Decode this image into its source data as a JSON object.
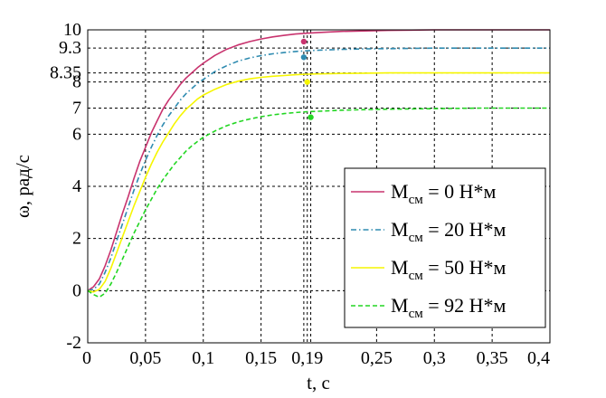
{
  "chart_data": {
    "type": "line",
    "title": "",
    "xlabel": "t, c",
    "ylabel": "ω, рад/с",
    "xlim": [
      0,
      0.4
    ],
    "ylim": [
      -2,
      10
    ],
    "grid": true,
    "grid_style": "dashed",
    "legend_position": "center-right",
    "x_ticks": [
      0,
      0.05,
      0.1,
      0.15,
      0.19,
      0.25,
      0.3,
      0.35,
      0.4
    ],
    "x_tick_labels": [
      "0",
      "0,05",
      "0,1",
      "0,15",
      "0,19",
      "0,25",
      "0,3",
      "0,35",
      "0,4"
    ],
    "y_ticks": [
      -2,
      0,
      2,
      4,
      6,
      7,
      8,
      8.35,
      9.3,
      10
    ],
    "y_tick_labels": [
      "-2",
      "0",
      "2",
      "4",
      "6",
      "7",
      "8",
      "8.35",
      "9.3",
      "10"
    ],
    "extra_vertical_lines": [
      0.187,
      0.193
    ],
    "x": [
      0,
      0.005,
      0.01,
      0.015,
      0.02,
      0.025,
      0.03,
      0.035,
      0.04,
      0.045,
      0.05,
      0.055,
      0.06,
      0.065,
      0.07,
      0.075,
      0.08,
      0.085,
      0.09,
      0.095,
      0.1,
      0.11,
      0.12,
      0.13,
      0.14,
      0.15,
      0.16,
      0.17,
      0.18,
      0.19,
      0.2,
      0.22,
      0.24,
      0.26,
      0.28,
      0.3,
      0.32,
      0.34,
      0.36,
      0.38,
      0.4
    ],
    "series": [
      {
        "name": "M_см = 0 Н*м",
        "color": "#c8336e",
        "dash": "solid",
        "values": [
          0,
          0.15,
          0.45,
          0.95,
          1.55,
          2.25,
          2.95,
          3.6,
          4.3,
          4.95,
          5.5,
          6.05,
          6.5,
          6.95,
          7.3,
          7.6,
          7.9,
          8.15,
          8.35,
          8.55,
          8.72,
          9.02,
          9.25,
          9.42,
          9.55,
          9.65,
          9.73,
          9.79,
          9.84,
          9.87,
          9.9,
          9.94,
          9.96,
          9.98,
          9.99,
          10,
          10,
          10,
          10,
          10,
          10
        ],
        "marker": {
          "x": 0.187,
          "y": 9.55
        }
      },
      {
        "name": "M_см = 20 Н*м",
        "color": "#2e8bb0",
        "dash": "dashdot",
        "values": [
          0,
          0.05,
          0.25,
          0.7,
          1.25,
          1.9,
          2.55,
          3.2,
          3.85,
          4.45,
          5.0,
          5.5,
          5.95,
          6.35,
          6.7,
          7.0,
          7.3,
          7.55,
          7.75,
          7.95,
          8.1,
          8.4,
          8.62,
          8.8,
          8.92,
          9.01,
          9.08,
          9.13,
          9.17,
          9.2,
          9.22,
          9.25,
          9.27,
          9.28,
          9.29,
          9.3,
          9.3,
          9.3,
          9.3,
          9.3,
          9.3
        ],
        "marker": {
          "x": 0.187,
          "y": 8.95
        }
      },
      {
        "name": "M_см = 50 Н*м",
        "color": "#f6f600",
        "dash": "solid",
        "values": [
          0,
          -0.05,
          0.05,
          0.35,
          0.85,
          1.45,
          2.05,
          2.65,
          3.25,
          3.8,
          4.35,
          4.85,
          5.3,
          5.7,
          6.05,
          6.4,
          6.7,
          6.95,
          7.15,
          7.35,
          7.5,
          7.72,
          7.9,
          8.03,
          8.12,
          8.18,
          8.22,
          8.25,
          8.28,
          8.3,
          8.31,
          8.33,
          8.34,
          8.35,
          8.35,
          8.35,
          8.35,
          8.35,
          8.35,
          8.35,
          8.35
        ],
        "marker": {
          "x": 0.19,
          "y": 8.0
        }
      },
      {
        "name": "M_см = 92 Н*м",
        "color": "#22d622",
        "dash": "dashed",
        "values": [
          0,
          -0.15,
          -0.25,
          -0.1,
          0.25,
          0.7,
          1.2,
          1.7,
          2.2,
          2.65,
          3.1,
          3.5,
          3.9,
          4.25,
          4.55,
          4.85,
          5.1,
          5.35,
          5.55,
          5.72,
          5.88,
          6.12,
          6.32,
          6.47,
          6.58,
          6.67,
          6.74,
          6.79,
          6.83,
          6.86,
          6.88,
          6.92,
          6.94,
          6.96,
          6.97,
          6.98,
          6.99,
          7.0,
          7.0,
          7.0,
          7.0
        ],
        "marker": {
          "x": 0.193,
          "y": 6.65
        }
      }
    ],
    "legend": [
      {
        "main": "M",
        "sub": "см",
        "rest": " = 0 Н*м"
      },
      {
        "main": "M",
        "sub": "см",
        "rest": " = 20 Н*м"
      },
      {
        "main": "M",
        "sub": "см",
        "rest": " = 50 Н*м"
      },
      {
        "main": "M",
        "sub": "см",
        "rest": " = 92 Н*м"
      }
    ]
  }
}
